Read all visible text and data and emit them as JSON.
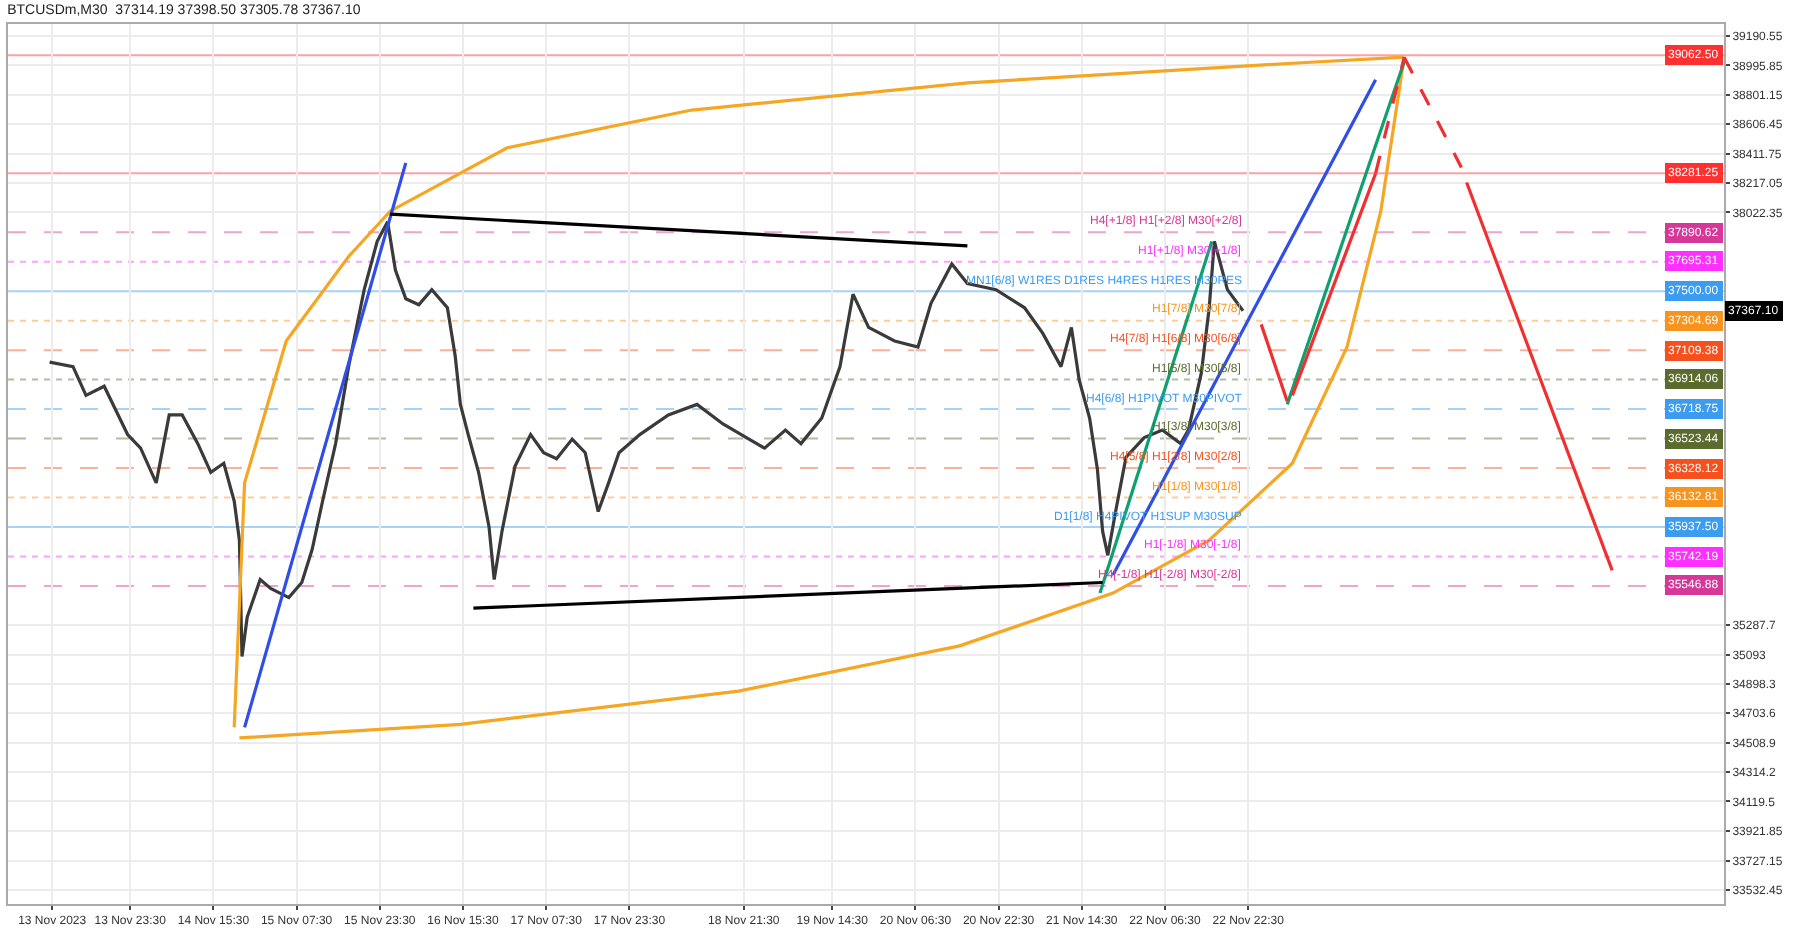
{
  "chart_data": {
    "type": "line",
    "title": "BTCUSDm,M30  37314.19 37398.50 37305.78 37367.10",
    "xlim": [
      "2023-11-13T00:00",
      "2023-11-26T18:00"
    ],
    "xticks": [
      {
        "value": "2023-11-13T08:30",
        "label": "13 Nov 2023"
      },
      {
        "value": "2023-11-13T23:30",
        "label": "13 Nov 23:30"
      },
      {
        "value": "2023-11-14T15:30",
        "label": "14 Nov 15:30"
      },
      {
        "value": "2023-11-15T07:30",
        "label": "15 Nov 07:30"
      },
      {
        "value": "2023-11-15T23:30",
        "label": "15 Nov 23:30"
      },
      {
        "value": "2023-11-16T15:30",
        "label": "16 Nov 15:30"
      },
      {
        "value": "2023-11-17T07:30",
        "label": "17 Nov 07:30"
      },
      {
        "value": "2023-11-17T23:30",
        "label": "17 Nov 23:30"
      },
      {
        "value": "2023-11-18T21:30",
        "label": "18 Nov 21:30"
      },
      {
        "value": "2023-11-19T14:30",
        "label": "19 Nov 14:30"
      },
      {
        "value": "2023-11-20T06:30",
        "label": "20 Nov 06:30"
      },
      {
        "value": "2023-11-20T22:30",
        "label": "20 Nov 22:30"
      },
      {
        "value": "2023-11-21T14:30",
        "label": "21 Nov 14:30"
      },
      {
        "value": "2023-11-22T06:30",
        "label": "22 Nov 06:30"
      },
      {
        "value": "2023-11-22T22:30",
        "label": "22 Nov 22:30"
      }
    ],
    "ylim": [
      33440,
      39270
    ],
    "yticks": [
      39190.55,
      38995.85,
      38801.15,
      38606.45,
      38411.75,
      38217.05,
      38022.35,
      35287.7,
      35093.0,
      34898.3,
      34703.6,
      34508.9,
      34314.2,
      34119.5,
      33921.85,
      33727.15,
      33532.45
    ],
    "grid": true,
    "marker": "none",
    "series": [
      {
        "color": "#3a3a3a",
        "line_style": "solid",
        "x": [
          "2023-11-13T08:00",
          "2023-11-13T12:30",
          "2023-11-13T15:00",
          "2023-11-13T18:30",
          "2023-11-13T23:00",
          "2023-11-14T01:30",
          "2023-11-14T04:30",
          "2023-11-14T07:00",
          "2023-11-14T09:30",
          "2023-11-14T12:30",
          "2023-11-14T15:00",
          "2023-11-14T17:30",
          "2023-11-14T19:30",
          "2023-11-14T20:30",
          "2023-11-14T21:00",
          "2023-11-14T22:00",
          "2023-11-15T00:30",
          "2023-11-15T02:30",
          "2023-11-15T06:00",
          "2023-11-15T08:30",
          "2023-11-15T10:30",
          "2023-11-15T12:30",
          "2023-11-15T15:00",
          "2023-11-15T17:30",
          "2023-11-15T20:30",
          "2023-11-15T23:00",
          "2023-11-16T01:00",
          "2023-11-16T02:30",
          "2023-11-16T04:30",
          "2023-11-16T07:00",
          "2023-11-16T09:30",
          "2023-11-16T12:30",
          "2023-11-16T14:00",
          "2023-11-16T15:00",
          "2023-11-16T16:30",
          "2023-11-16T18:30",
          "2023-11-16T20:30",
          "2023-11-16T21:30",
          "2023-11-16T23:00",
          "2023-11-17T01:30",
          "2023-11-17T04:30",
          "2023-11-17T07:00",
          "2023-11-17T09:30",
          "2023-11-17T12:30",
          "2023-11-17T15:00",
          "2023-11-17T17:30",
          "2023-11-17T19:30",
          "2023-11-17T21:30",
          "2023-11-18T01:30",
          "2023-11-18T07:00",
          "2023-11-18T12:30",
          "2023-11-18T17:30",
          "2023-11-18T22:00",
          "2023-11-19T01:30",
          "2023-11-19T05:30",
          "2023-11-19T08:30",
          "2023-11-19T12:30",
          "2023-11-19T16:00",
          "2023-11-19T18:30",
          "2023-11-19T21:30",
          "2023-11-20T02:30",
          "2023-11-20T07:00",
          "2023-11-20T09:30",
          "2023-11-20T13:30",
          "2023-11-20T16:30",
          "2023-11-20T22:00",
          "2023-11-21T03:30",
          "2023-11-21T07:00",
          "2023-11-21T10:30",
          "2023-11-21T12:30",
          "2023-11-21T14:00",
          "2023-11-21T16:00",
          "2023-11-21T17:30",
          "2023-11-21T18:30",
          "2023-11-21T19:30",
          "2023-11-21T21:00",
          "2023-11-21T23:00",
          "2023-11-22T02:30",
          "2023-11-22T06:00",
          "2023-11-22T09:30",
          "2023-11-22T11:00",
          "2023-11-22T13:30",
          "2023-11-22T15:00",
          "2023-11-22T16:00",
          "2023-11-22T18:30",
          "2023-11-22T21:30"
        ],
        "values": [
          37030,
          37000,
          36810,
          36870,
          36550,
          36460,
          36230,
          36680,
          36680,
          36490,
          36300,
          36360,
          36110,
          35850,
          35080,
          35340,
          35590,
          35530,
          35470,
          35570,
          35790,
          36110,
          36490,
          37000,
          37510,
          37830,
          37960,
          37640,
          37450,
          37410,
          37510,
          37390,
          37070,
          36750,
          36550,
          36300,
          35940,
          35590,
          35910,
          36340,
          36550,
          36430,
          36390,
          36520,
          36430,
          36040,
          36230,
          36430,
          36550,
          36680,
          36750,
          36620,
          36530,
          36460,
          36580,
          36490,
          36660,
          37000,
          37480,
          37260,
          37170,
          37130,
          37420,
          37680,
          37550,
          37510,
          37390,
          37220,
          37000,
          37260,
          36910,
          36660,
          36320,
          35910,
          35750,
          36040,
          36400,
          36530,
          36580,
          36490,
          36580,
          36960,
          37390,
          37830,
          37510,
          37370
        ]
      },
      {
        "color": "#f5a623",
        "line_style": "solid",
        "x": [
          "2023-11-14T19:30",
          "2023-11-14T21:30",
          "2023-11-15T05:30",
          "2023-11-15T17:30",
          "2023-11-16T01:30",
          "2023-11-17T00:00",
          "2023-11-18T11:30",
          "2023-11-20T16:30",
          "2023-11-23T07:00",
          "2023-11-24T04:30"
        ],
        "values": [
          34610,
          36230,
          37170,
          37730,
          38030,
          38450,
          38700,
          38880,
          39010,
          39050
        ]
      },
      {
        "color": "#f5a623",
        "line_style": "solid",
        "x": [
          "2023-11-14T20:30",
          "2023-11-16T15:00",
          "2023-11-18T20:30",
          "2023-11-20T15:00",
          "2023-11-21T20:30",
          "2023-11-22T15:00",
          "2023-11-23T07:00",
          "2023-11-23T17:30",
          "2023-11-24T00:00",
          "2023-11-24T04:30"
        ],
        "values": [
          34540,
          34630,
          34850,
          35150,
          35500,
          35850,
          36360,
          37130,
          38030,
          39050
        ]
      },
      {
        "color": "#2f4ee8",
        "line_style": "solid",
        "x": [
          "2023-11-14T21:30",
          "2023-11-16T04:30"
        ],
        "values": [
          34610,
          38350
        ]
      },
      {
        "color": "#2f4ee8",
        "line_style": "solid",
        "x": [
          "2023-11-21T20:30",
          "2023-11-23T23:00"
        ],
        "values": [
          35620,
          38900
        ]
      },
      {
        "color": "#0fa070",
        "line_style": "solid",
        "x": [
          "2023-11-21T18:00",
          "2023-11-22T15:30"
        ],
        "values": [
          35500,
          37830
        ]
      },
      {
        "color": "#0fa070",
        "line_style": "solid",
        "x": [
          "2023-11-23T06:00",
          "2023-11-24T04:30"
        ],
        "values": [
          36750,
          39020
        ]
      },
      {
        "color": "#000000",
        "line_style": "solid",
        "x": [
          "2023-11-16T01:30",
          "2023-11-20T16:30"
        ],
        "values": [
          38010,
          37800
        ]
      },
      {
        "color": "#000000",
        "line_style": "solid",
        "x": [
          "2023-11-16T17:30",
          "2023-11-21T18:30"
        ],
        "values": [
          35400,
          35570
        ]
      },
      {
        "color": "#f03030",
        "line_style": "solid",
        "x": [
          "2023-11-23T01:00",
          "2023-11-23T06:00"
        ],
        "values": [
          37280,
          36770
        ]
      },
      {
        "color": "#f03030",
        "line_style": "solid",
        "x": [
          "2023-11-23T07:00",
          "2023-11-23T23:00"
        ],
        "values": [
          36810,
          38280
        ]
      },
      {
        "color": "#f03030",
        "line_style": "dashed",
        "x": [
          "2023-11-23T23:00",
          "2023-11-24T04:30"
        ],
        "values": [
          38280,
          39050
        ]
      },
      {
        "color": "#f03030",
        "line_style": "dashed",
        "x": [
          "2023-11-24T04:30",
          "2023-11-24T15:30"
        ],
        "values": [
          39050,
          38320
        ]
      },
      {
        "color": "#f03030",
        "line_style": "solid",
        "x": [
          "2023-11-24T16:30",
          "2023-11-25T20:30"
        ],
        "values": [
          38220,
          35650
        ]
      }
    ],
    "ref_lines": [
      {
        "axis": "y",
        "value": 39062.5,
        "label": "39062.50",
        "color": "#ff3030",
        "line_style": "solid"
      },
      {
        "axis": "y",
        "value": 38281.25,
        "label": "38281.25",
        "color": "#ff3030",
        "line_style": "solid"
      },
      {
        "axis": "y",
        "value": 37890.62,
        "label": "37890.62",
        "color": "#d6389a",
        "line_style": "dashed"
      },
      {
        "axis": "y",
        "value": 37695.31,
        "label": "37695.31",
        "color": "#ff30ff",
        "line_style": "dotted"
      },
      {
        "axis": "y",
        "value": 37500.0,
        "label": "37500.00",
        "color": "#3c9cf0",
        "line_style": "solid"
      },
      {
        "axis": "y",
        "value": 37304.69,
        "label": "37304.69",
        "color": "#f7941d",
        "line_style": "dotted"
      },
      {
        "axis": "y",
        "value": 37109.38,
        "label": "37109.38",
        "color": "#f4511e",
        "line_style": "dashed"
      },
      {
        "axis": "y",
        "value": 36914.06,
        "label": "36914.06",
        "color": "#5b6b2e",
        "line_style": "dotted"
      },
      {
        "axis": "y",
        "value": 36718.75,
        "label": "36718.75",
        "color": "#3c9cf0",
        "line_style": "dashed"
      },
      {
        "axis": "y",
        "value": 36523.44,
        "label": "36523.44",
        "color": "#5b6b2e",
        "line_style": "dashed"
      },
      {
        "axis": "y",
        "value": 36328.12,
        "label": "36328.12",
        "color": "#f4511e",
        "line_style": "dashed"
      },
      {
        "axis": "y",
        "value": 36132.81,
        "label": "36132.81",
        "color": "#f7941d",
        "line_style": "dotted"
      },
      {
        "axis": "y",
        "value": 35937.5,
        "label": "35937.50",
        "color": "#3c9cf0",
        "line_style": "solid"
      },
      {
        "axis": "y",
        "value": 35742.19,
        "label": "35742.19",
        "color": "#ff30ff",
        "line_style": "dotted"
      },
      {
        "axis": "y",
        "value": 35546.88,
        "label": "35546.88",
        "color": "#d6389a",
        "line_style": "dashed"
      }
    ],
    "annotations": [
      {
        "text": "H4[+1/8] H1[+2/8] M30[+2/8]",
        "x": "2023-11-22T22:00",
        "y": 37890.62
      },
      {
        "text": "H1[+1/8] M30[+1/8]",
        "x": "2023-11-22T22:00",
        "y": 37695.31
      },
      {
        "text": "MN1[6/8] W1RES D1RES H4RES H1RES M30RES",
        "x": "2023-11-22T22:00",
        "y": 37500.0
      },
      {
        "text": "H1[7/8] M30[7/8]",
        "x": "2023-11-22T22:00",
        "y": 37304.69
      },
      {
        "text": "H4[7/8] H1[6/8] M30[6/8]",
        "x": "2023-11-22T22:00",
        "y": 37109.38
      },
      {
        "text": "H1[5/8] M30[5/8]",
        "x": "2023-11-22T22:00",
        "y": 36914.06
      },
      {
        "text": "H4[6/8] H1PIVOT M30PIVOT",
        "x": "2023-11-22T22:00",
        "y": 36718.75
      },
      {
        "text": "H1[3/8] M30[3/8]",
        "x": "2023-11-22T22:00",
        "y": 36523.44
      },
      {
        "text": "H4[5/8] H1[2/8] M30[2/8]",
        "x": "2023-11-22T22:00",
        "y": 36328.12
      },
      {
        "text": "H1[1/8] M30[1/8]",
        "x": "2023-11-22T22:00",
        "y": 36132.81
      },
      {
        "text": "D1[1/8] H4PIVOT H1SUP M30SUP",
        "x": "2023-11-22T22:00",
        "y": 35937.5
      },
      {
        "text": "H1[-1/8] M30[-1/8]",
        "x": "2023-11-22T22:00",
        "y": 35742.19
      },
      {
        "text": "H4[-1/8] H1[-2/8] M30[-2/8]",
        "x": "2023-11-22T22:00",
        "y": 35546.88
      },
      {
        "text": "37367.10",
        "y": 37367.1
      }
    ]
  }
}
